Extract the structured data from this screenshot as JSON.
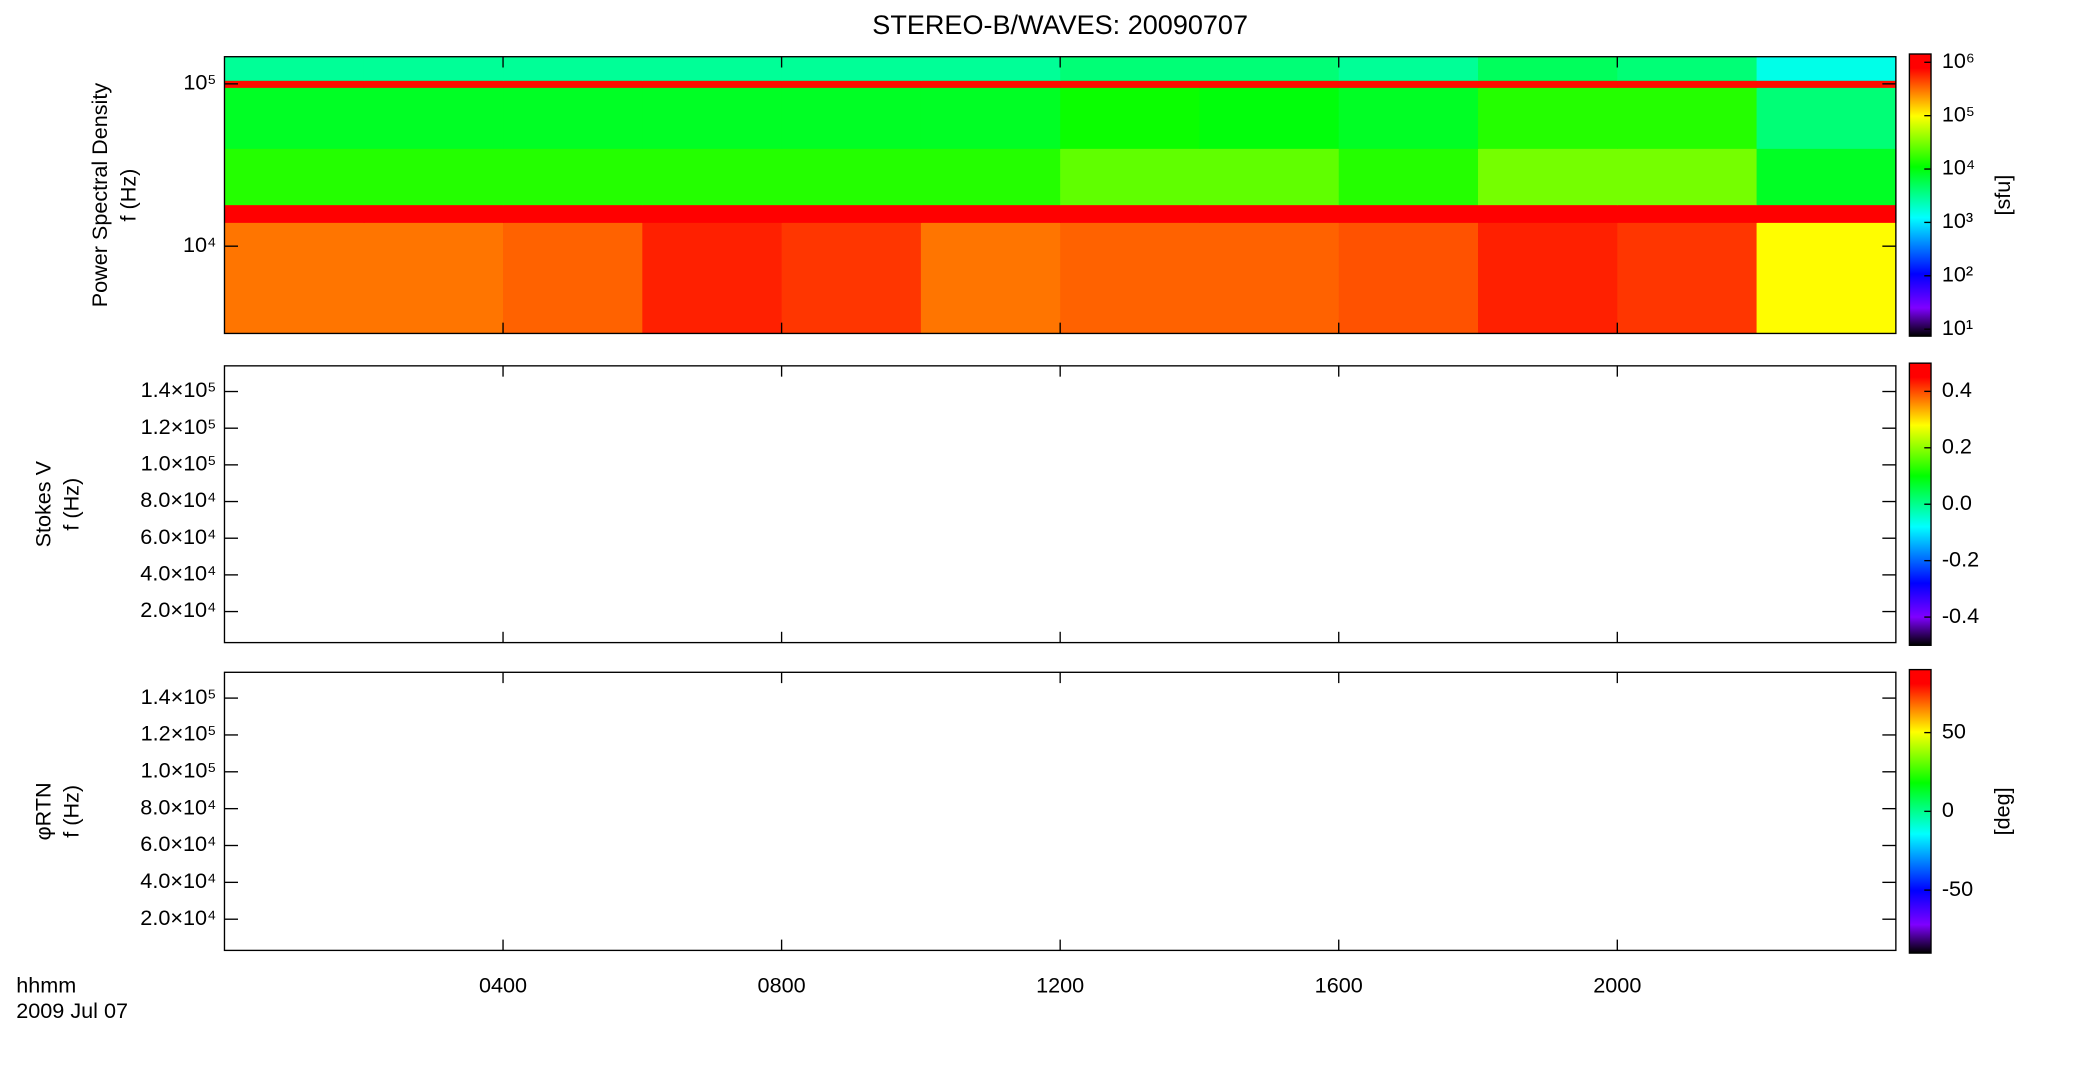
{
  "title": "STEREO-B/WAVES: 20090707",
  "time_label": "hhmm",
  "date_label": "2009 Jul 07",
  "x_axis": {
    "xlim": [
      0,
      24
    ],
    "xticks": [
      {
        "value": 4,
        "label": "0400"
      },
      {
        "value": 8,
        "label": "0800"
      },
      {
        "value": 12,
        "label": "1200"
      },
      {
        "value": 16,
        "label": "1600"
      },
      {
        "value": 20,
        "label": "2000"
      }
    ]
  },
  "colormap": [
    {
      "offset": 0,
      "color": "#000000"
    },
    {
      "offset": 0.1,
      "color": "#7f00ff"
    },
    {
      "offset": 0.22,
      "color": "#0000ff"
    },
    {
      "offset": 0.42,
      "color": "#00ffff"
    },
    {
      "offset": 0.6,
      "color": "#00ff00"
    },
    {
      "offset": 0.78,
      "color": "#ffff00"
    },
    {
      "offset": 0.95,
      "color": "#ff0000"
    },
    {
      "offset": 1,
      "color": "#ff0000"
    }
  ],
  "chart_data": [
    {
      "type": "heatmap",
      "ylabel": [
        "Power Spectral Density",
        "f (Hz)"
      ],
      "ylog": true,
      "ylim": [
        2900,
        147000
      ],
      "yticks": [
        {
          "value": 10000,
          "label": "10⁴"
        },
        {
          "value": 100000,
          "label": "10⁵"
        }
      ],
      "x_edges": [
        0,
        2,
        4,
        6,
        8,
        10,
        12,
        14,
        16,
        18,
        20,
        22,
        24
      ],
      "y_edges": [
        2900,
        14000,
        18000,
        40000,
        95000,
        105000,
        147000
      ],
      "z": [
        [
          300000,
          300000,
          350000,
          600000,
          500000,
          300000,
          350000,
          350000,
          400000,
          600000,
          500000,
          100000
        ],
        [
          900000,
          900000,
          900000,
          900000,
          900000,
          900000,
          900000,
          900000,
          900000,
          900000,
          900000,
          900000
        ],
        [
          15000,
          15000,
          15000,
          15000,
          15000,
          15000,
          25000,
          25000,
          15000,
          30000,
          30000,
          8000
        ],
        [
          8000,
          8000,
          8000,
          8000,
          8000,
          8000,
          12000,
          10000,
          8000,
          15000,
          15000,
          4000
        ],
        [
          700000,
          700000,
          700000,
          700000,
          700000,
          700000,
          700000,
          700000,
          700000,
          700000,
          700000,
          700000
        ],
        [
          3000,
          3000,
          3000,
          3000,
          3000,
          3000,
          4000,
          4000,
          3000,
          5000,
          4000,
          1500
        ]
      ],
      "zlog": true,
      "zlim": [
        7.4,
        1430000
      ],
      "zticks": [
        {
          "value": 10,
          "label": "10¹"
        },
        {
          "value": 100,
          "label": "10²"
        },
        {
          "value": 1000,
          "label": "10³"
        },
        {
          "value": 10000,
          "label": "10⁴"
        },
        {
          "value": 100000,
          "label": "10⁵"
        },
        {
          "value": 1000000,
          "label": "10⁶"
        }
      ],
      "zlabel": "[sfu]"
    },
    {
      "type": "heatmap",
      "ylabel": [
        "Stokes V",
        "f (Hz)"
      ],
      "ylog": false,
      "ylim": [
        3070,
        154000
      ],
      "yticks": [
        {
          "value": 20000,
          "label": "2.0×10⁴"
        },
        {
          "value": 40000,
          "label": "4.0×10⁴"
        },
        {
          "value": 60000,
          "label": "6.0×10⁴"
        },
        {
          "value": 80000,
          "label": "8.0×10⁴"
        },
        {
          "value": 100000,
          "label": "1.0×10⁵"
        },
        {
          "value": 120000,
          "label": "1.2×10⁵"
        },
        {
          "value": 140000,
          "label": "1.4×10⁵"
        }
      ],
      "zlog": false,
      "zlim": [
        -0.5,
        0.5
      ],
      "zticks": [
        -0.4,
        -0.2,
        {
          "value": 0,
          "label": "0.0"
        },
        0.2,
        0.4
      ]
    },
    {
      "type": "heatmap",
      "ylabel": [
        "φRTN",
        "f (Hz)"
      ],
      "ylog": false,
      "ylim": [
        3070,
        154000
      ],
      "yticks": [
        {
          "value": 20000,
          "label": "2.0×10⁴"
        },
        {
          "value": 40000,
          "label": "4.0×10⁴"
        },
        {
          "value": 60000,
          "label": "6.0×10⁴"
        },
        {
          "value": 80000,
          "label": "8.0×10⁴"
        },
        {
          "value": 100000,
          "label": "1.0×10⁵"
        },
        {
          "value": 120000,
          "label": "1.2×10⁵"
        },
        {
          "value": 140000,
          "label": "1.4×10⁵"
        }
      ],
      "zlog": false,
      "zlim": [
        -90,
        90
      ],
      "zticks": [
        -50,
        0,
        50
      ],
      "zlabel": "[deg]"
    }
  ]
}
